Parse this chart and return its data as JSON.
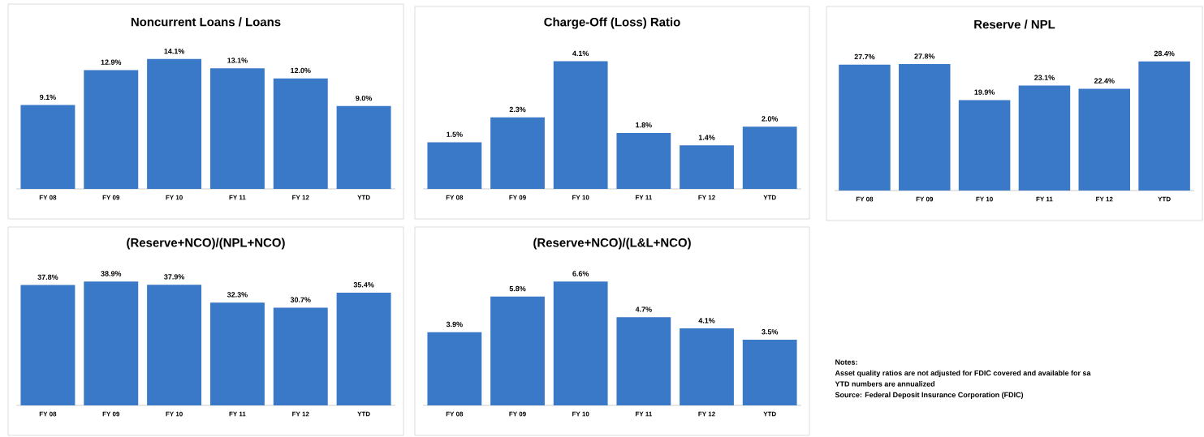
{
  "chart_data": [
    {
      "type": "bar",
      "title": "Noncurrent Loans / Loans",
      "categories": [
        "FY 08",
        "FY 09",
        "FY 10",
        "FY 11",
        "FY 12",
        "YTD"
      ],
      "values": [
        9.1,
        12.9,
        14.1,
        13.1,
        12.0,
        9.0
      ],
      "value_labels": [
        "9.1%",
        "12.9%",
        "14.1%",
        "13.1%",
        "12.0%",
        "9.0%"
      ],
      "color": "#3a78c8"
    },
    {
      "type": "bar",
      "title": "Charge-Off (Loss) Ratio",
      "categories": [
        "FY 08",
        "FY 09",
        "FY 10",
        "FY 11",
        "FY 12",
        "YTD"
      ],
      "values": [
        1.5,
        2.3,
        4.1,
        1.8,
        1.4,
        2.0
      ],
      "value_labels": [
        "1.5%",
        "2.3%",
        "4.1%",
        "1.8%",
        "1.4%",
        "2.0%"
      ],
      "color": "#3a78c8"
    },
    {
      "type": "bar",
      "title": "Reserve / NPL",
      "categories": [
        "FY 08",
        "FY 09",
        "FY 10",
        "FY 11",
        "FY 12",
        "YTD"
      ],
      "values": [
        27.7,
        27.8,
        19.9,
        23.1,
        22.4,
        28.4
      ],
      "value_labels": [
        "27.7%",
        "27.8%",
        "19.9%",
        "23.1%",
        "22.4%",
        "28.4%"
      ],
      "color": "#3a78c8"
    },
    {
      "type": "bar",
      "title": "(Reserve+NCO)/(NPL+NCO)",
      "categories": [
        "FY 08",
        "FY 09",
        "FY 10",
        "FY 11",
        "FY 12",
        "YTD"
      ],
      "values": [
        37.8,
        38.9,
        37.9,
        32.3,
        30.7,
        35.4
      ],
      "value_labels": [
        "37.8%",
        "38.9%",
        "37.9%",
        "32.3%",
        "30.7%",
        "35.4%"
      ],
      "color": "#3a78c8"
    },
    {
      "type": "bar",
      "title": "(Reserve+NCO)/(L&L+NCO)",
      "categories": [
        "FY 08",
        "FY 09",
        "FY 10",
        "FY 11",
        "FY 12",
        "YTD"
      ],
      "values": [
        3.9,
        5.8,
        6.6,
        4.7,
        4.1,
        3.5
      ],
      "value_labels": [
        "3.9%",
        "5.8%",
        "6.6%",
        "4.7%",
        "4.1%",
        "3.5%"
      ],
      "color": "#3a78c8"
    },
    {
      "type": "other",
      "annotations": [
        "Notes:",
        "Asset quality ratios are not adjusted for FDIC covered and available for sa",
        "YTD numbers are annualized",
        "Source: Federal Deposit Insurance Corporation (FDIC)"
      ]
    }
  ]
}
